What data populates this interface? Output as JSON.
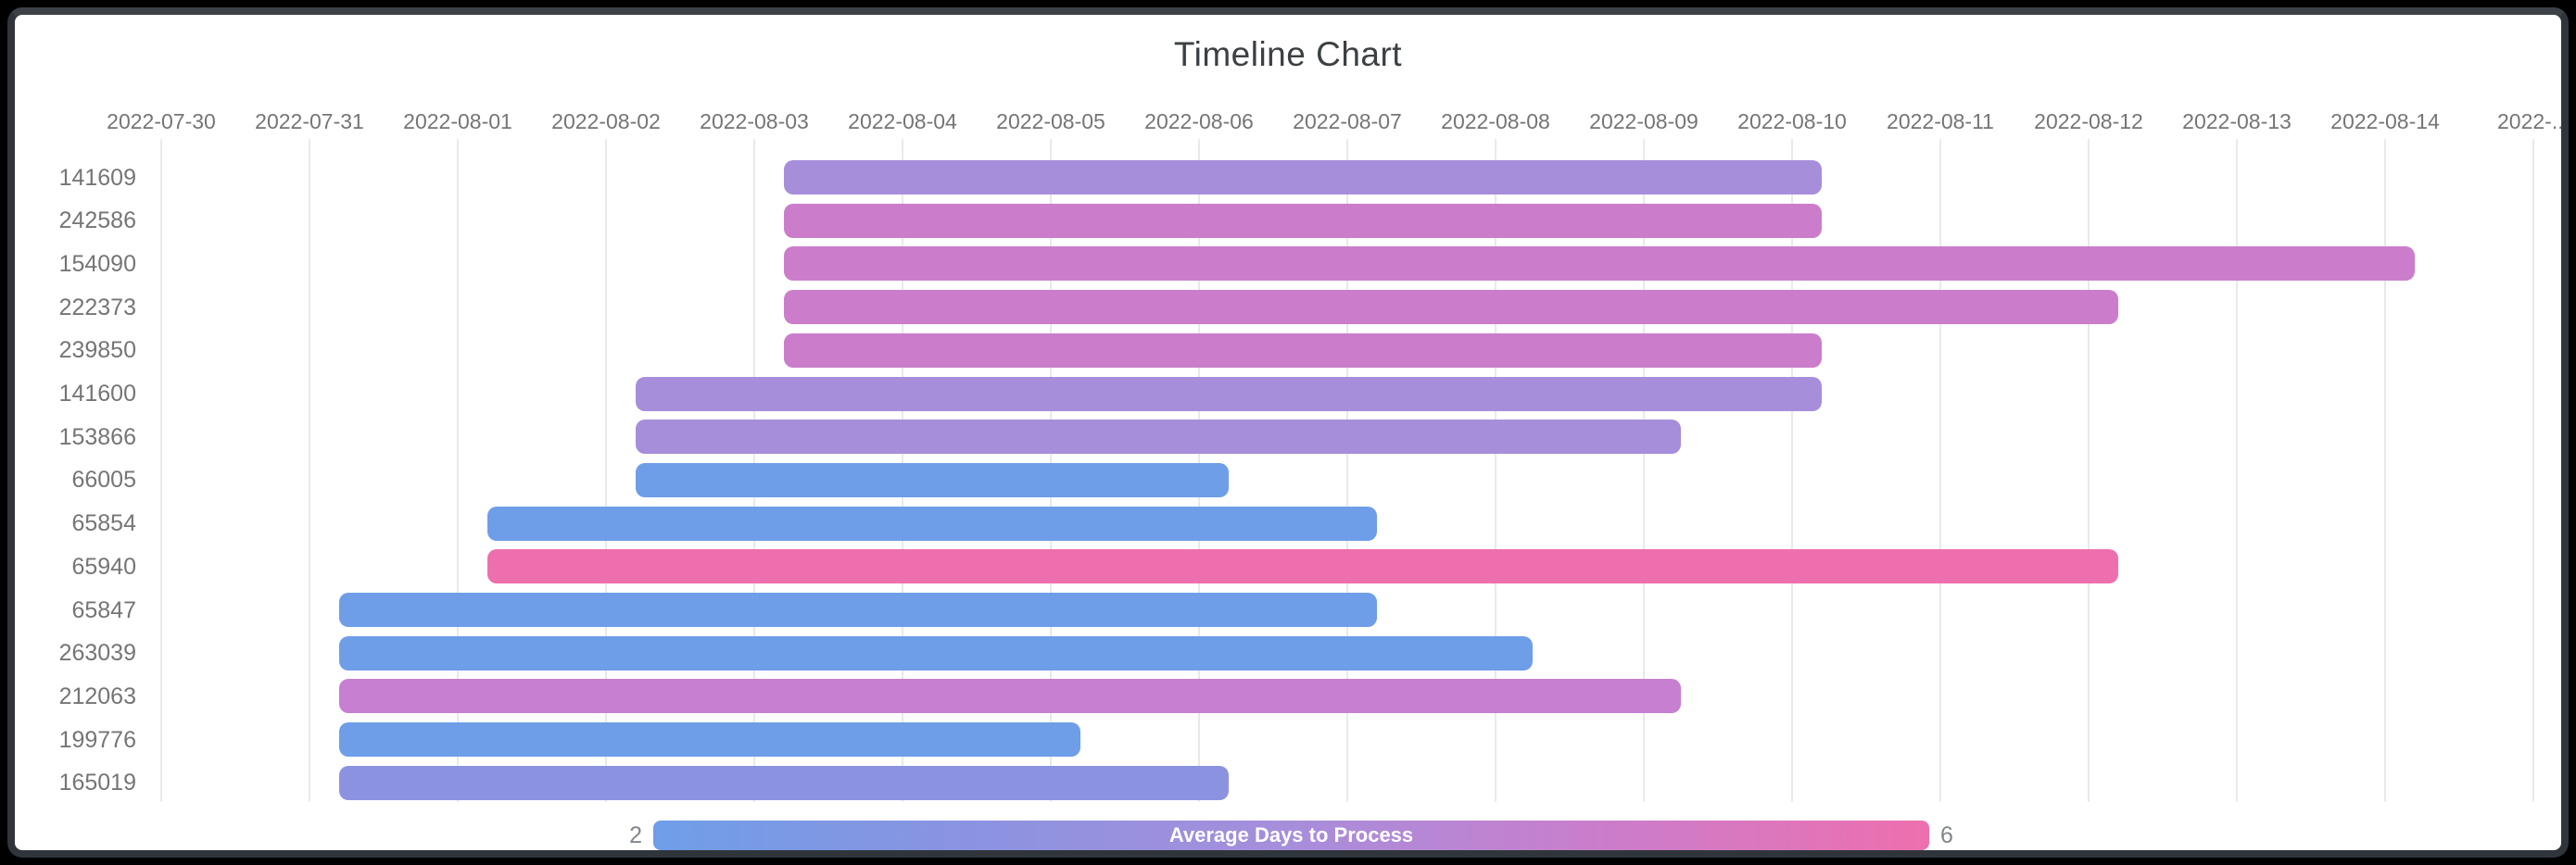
{
  "title": "Timeline Chart",
  "legend": {
    "min_label": "2",
    "max_label": "6",
    "label": "Average Days to Process",
    "gradient": [
      "#6f9ee8",
      "#8b93e1",
      "#a78edb",
      "#cb7dcb",
      "#ee6fae"
    ]
  },
  "colors": {
    "outer_background": "#000000",
    "frame": "#2f353b",
    "card_background": "#ffffff",
    "gridline": "#e7e9f0",
    "axis_text": "#757575",
    "title_text": "#3b4043",
    "legend_value_text": "#80868b"
  },
  "chart_data": {
    "type": "timeline",
    "title": "Timeline Chart",
    "x_ticks": [
      "2022-07-30",
      "2022-07-31",
      "2022-08-01",
      "2022-08-02",
      "2022-08-03",
      "2022-08-04",
      "2022-08-05",
      "2022-08-06",
      "2022-08-07",
      "2022-08-08",
      "2022-08-09",
      "2022-08-10",
      "2022-08-11",
      "2022-08-12",
      "2022-08-13",
      "2022-08-14",
      "2022-..."
    ],
    "x_axis_origin_date": "2022-07-30",
    "grid": true,
    "legend_position": "bottom",
    "color_encoding": "Average Days to Process (2 = blue, 6 = pink)",
    "rows": [
      {
        "id": "141609",
        "start_date": "2022-08-03",
        "end_date": "2022-08-10",
        "start_day": 4.2,
        "end_day": 11.2,
        "duration_days": 7,
        "avg_days_to_process": 4,
        "color": "#a78edb"
      },
      {
        "id": "242586",
        "start_date": "2022-08-03",
        "end_date": "2022-08-10",
        "start_day": 4.2,
        "end_day": 11.2,
        "duration_days": 7,
        "avg_days_to_process": 5,
        "color": "#cb7dcb"
      },
      {
        "id": "154090",
        "start_date": "2022-08-03",
        "end_date": "2022-08-14",
        "start_day": 4.2,
        "end_day": 15.2,
        "duration_days": 11,
        "avg_days_to_process": 5,
        "color": "#cb7dcb"
      },
      {
        "id": "222373",
        "start_date": "2022-08-03",
        "end_date": "2022-08-12",
        "start_day": 4.2,
        "end_day": 13.2,
        "duration_days": 9,
        "avg_days_to_process": 5,
        "color": "#cb7dcb"
      },
      {
        "id": "239850",
        "start_date": "2022-08-03",
        "end_date": "2022-08-10",
        "start_day": 4.2,
        "end_day": 11.2,
        "duration_days": 7,
        "avg_days_to_process": 5,
        "color": "#cb7dcb"
      },
      {
        "id": "141600",
        "start_date": "2022-08-02",
        "end_date": "2022-08-10",
        "start_day": 3.2,
        "end_day": 11.2,
        "duration_days": 8,
        "avg_days_to_process": 4,
        "color": "#a78edb"
      },
      {
        "id": "153866",
        "start_date": "2022-08-02",
        "end_date": "2022-08-09",
        "start_day": 3.2,
        "end_day": 10.25,
        "duration_days": 7,
        "avg_days_to_process": 4,
        "color": "#a78edb"
      },
      {
        "id": "66005",
        "start_date": "2022-08-02",
        "end_date": "2022-08-06",
        "start_day": 3.2,
        "end_day": 7.2,
        "duration_days": 4,
        "avg_days_to_process": 2,
        "color": "#6f9ee8"
      },
      {
        "id": "65854",
        "start_date": "2022-08-01",
        "end_date": "2022-08-07",
        "start_day": 2.2,
        "end_day": 8.2,
        "duration_days": 6,
        "avg_days_to_process": 2,
        "color": "#6f9ee8"
      },
      {
        "id": "65940",
        "start_date": "2022-08-01",
        "end_date": "2022-08-12",
        "start_day": 2.2,
        "end_day": 13.2,
        "duration_days": 11,
        "avg_days_to_process": 6,
        "color": "#ee6fae"
      },
      {
        "id": "65847",
        "start_date": "2022-07-31",
        "end_date": "2022-08-07",
        "start_day": 1.2,
        "end_day": 8.2,
        "duration_days": 7,
        "avg_days_to_process": 2,
        "color": "#6f9ee8"
      },
      {
        "id": "263039",
        "start_date": "2022-07-31",
        "end_date": "2022-08-08",
        "start_day": 1.2,
        "end_day": 9.25,
        "duration_days": 8,
        "avg_days_to_process": 2,
        "color": "#6f9ee8"
      },
      {
        "id": "212063",
        "start_date": "2022-07-31",
        "end_date": "2022-08-09",
        "start_day": 1.2,
        "end_day": 10.25,
        "duration_days": 9,
        "avg_days_to_process": 5,
        "color": "#c77fd2"
      },
      {
        "id": "199776",
        "start_date": "2022-07-31",
        "end_date": "2022-08-05",
        "start_day": 1.2,
        "end_day": 6.2,
        "duration_days": 5,
        "avg_days_to_process": 2,
        "color": "#6f9ee8"
      },
      {
        "id": "165019",
        "start_date": "2022-07-31",
        "end_date": "2022-08-06",
        "start_day": 1.2,
        "end_day": 7.2,
        "duration_days": 6,
        "avg_days_to_process": 3,
        "color": "#8b93e1"
      }
    ]
  }
}
